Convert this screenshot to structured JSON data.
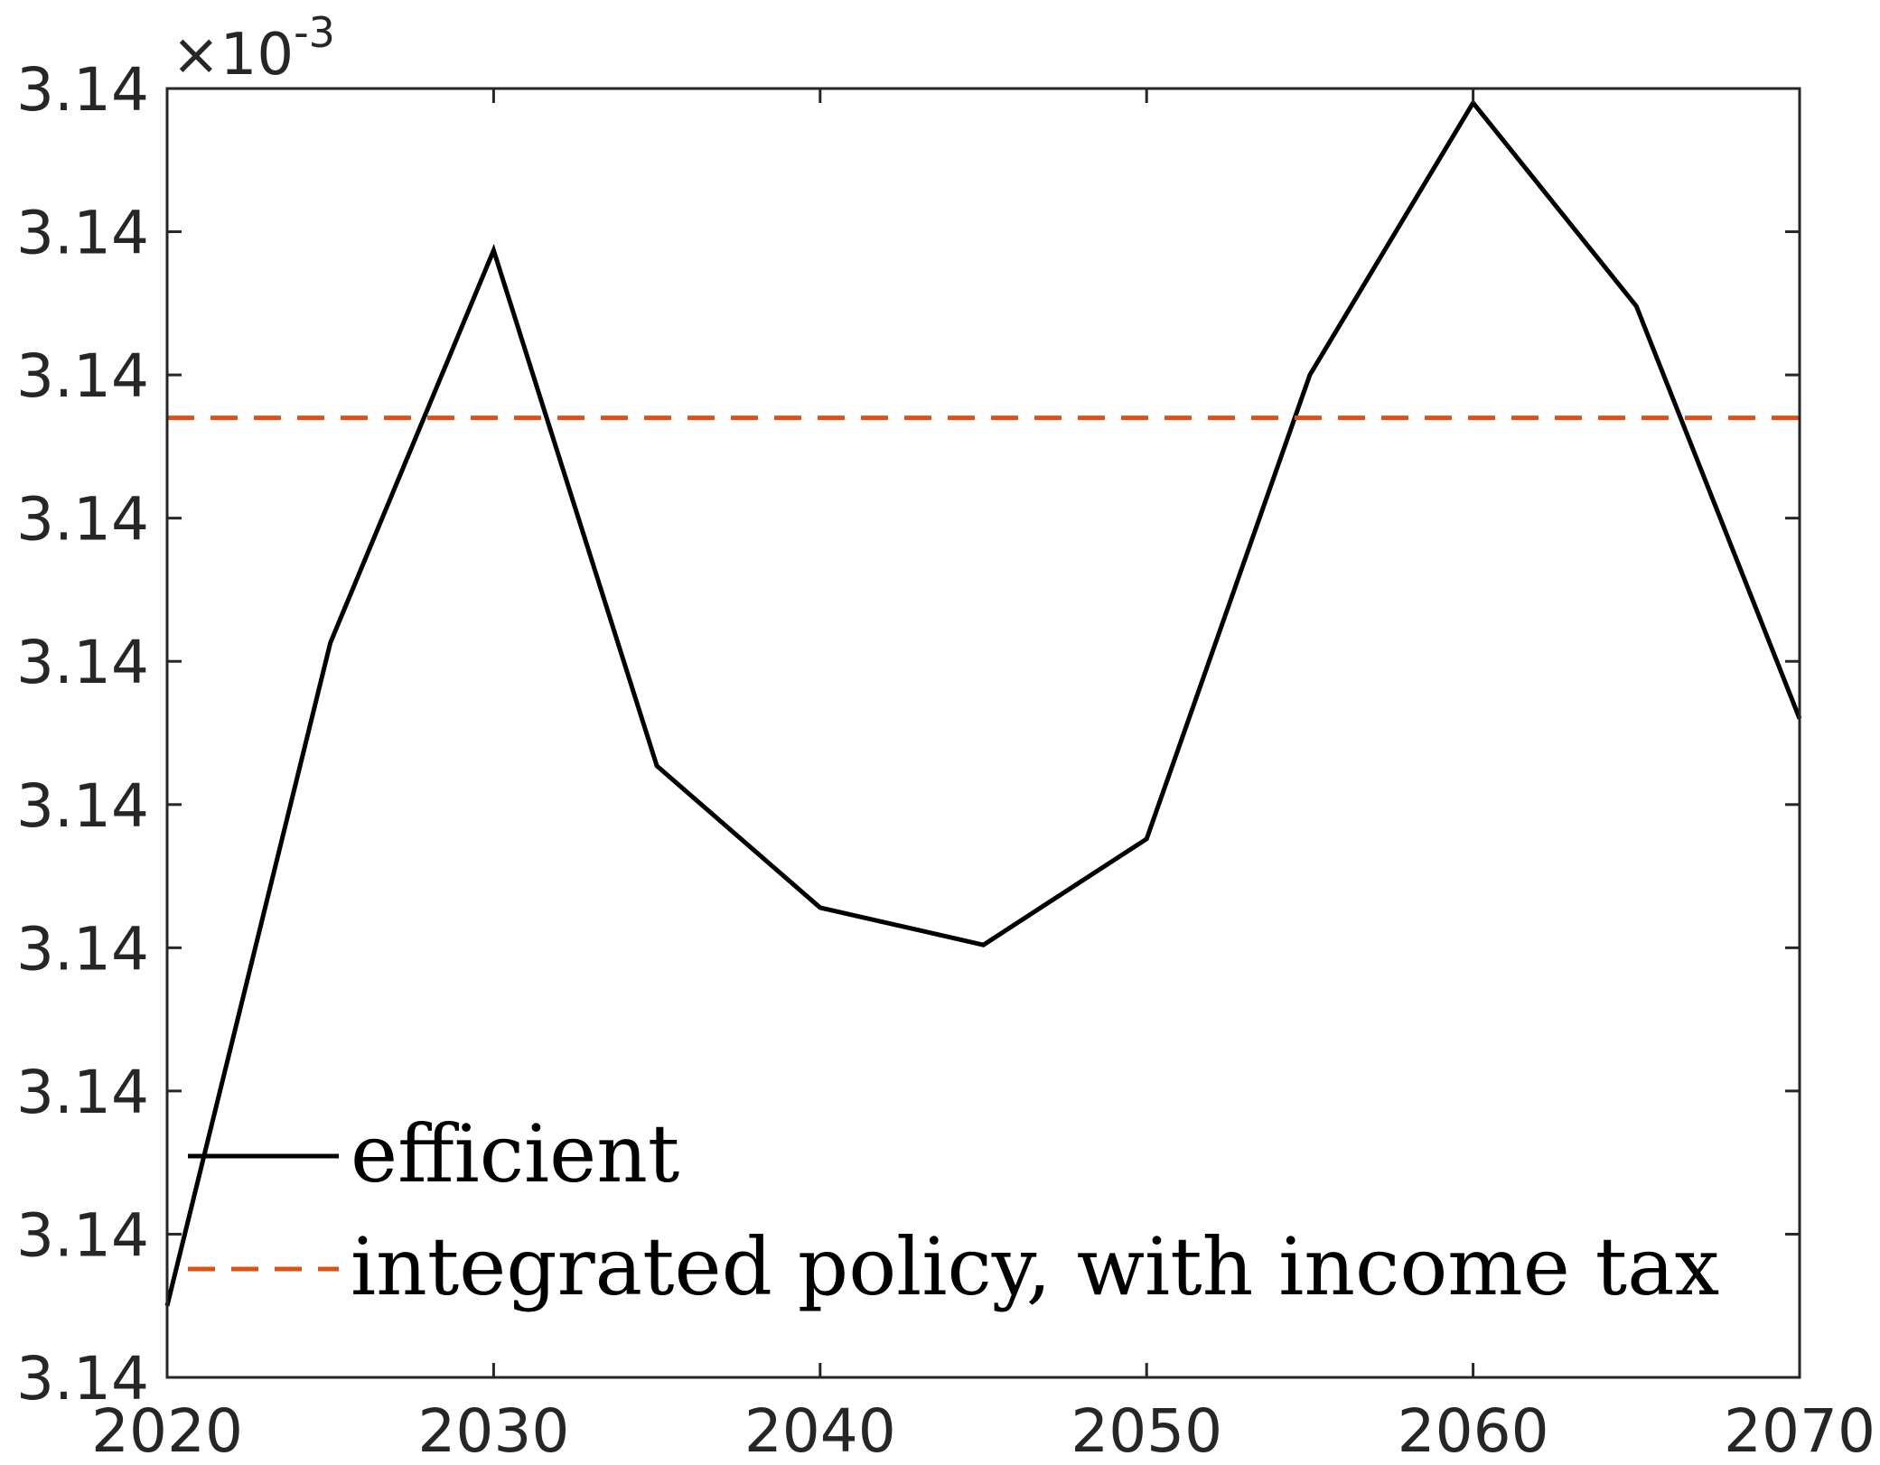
{
  "chart_data": {
    "type": "line",
    "title": "",
    "xlabel": "",
    "ylabel": "",
    "y_exponent_label": "×10",
    "y_exponent_power": "-3",
    "x_ticks": [
      "2020",
      "2030",
      "2040",
      "2050",
      "2060",
      "2070"
    ],
    "y_ticks": [
      "3.14",
      "3.14",
      "3.14",
      "3.14",
      "3.14",
      "3.14",
      "3.14",
      "3.14",
      "3.14",
      "3.14"
    ],
    "xlim": [
      2020,
      2070
    ],
    "ylim": [
      0,
      9
    ],
    "grid": false,
    "legend_position": "bottom-left",
    "series": [
      {
        "name": "efficient",
        "color": "#000000",
        "style": "solid",
        "x": [
          2020,
          2025,
          2030,
          2035,
          2040,
          2045,
          2050,
          2055,
          2060,
          2065,
          2070
        ],
        "y": [
          0.5,
          5.13,
          7.87,
          4.27,
          3.28,
          3.02,
          3.76,
          7.0,
          8.9,
          7.48,
          4.6
        ]
      },
      {
        "name": "integrated policy, with income tax",
        "color": "#D95319",
        "style": "dashed",
        "x": [
          2020,
          2070
        ],
        "y": [
          6.7,
          6.7
        ]
      }
    ]
  }
}
